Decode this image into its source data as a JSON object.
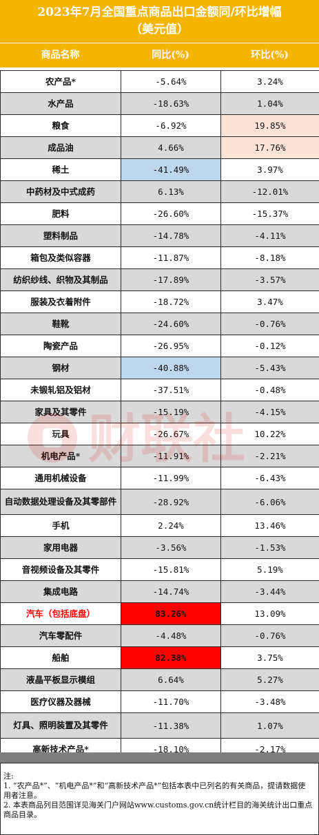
{
  "title": {
    "line1": "2023年7月全国重点商品出口金额同/环比增幅",
    "line2": "（美元值）"
  },
  "headers": {
    "name": "商品名称",
    "yoy": "同比(%)",
    "mom": "环比(%)"
  },
  "rows": [
    {
      "name": "农产品*",
      "yoy": "-5.64%",
      "mom": "3.24%"
    },
    {
      "name": "水产品",
      "yoy": "-18.63%",
      "mom": "1.04%"
    },
    {
      "name": "粮食",
      "yoy": "-6.92%",
      "mom": "19.85%"
    },
    {
      "name": "成品油",
      "yoy": "4.66%",
      "mom": "17.76%"
    },
    {
      "name": "稀土",
      "yoy": "-41.49%",
      "mom": "3.97%"
    },
    {
      "name": "中药材及中式成药",
      "yoy": "6.13%",
      "mom": "-12.01%"
    },
    {
      "name": "肥料",
      "yoy": "-26.60%",
      "mom": "-15.37%"
    },
    {
      "name": "塑料制品",
      "yoy": "-14.78%",
      "mom": "-4.11%"
    },
    {
      "name": "箱包及类似容器",
      "yoy": "-11.87%",
      "mom": "-8.18%"
    },
    {
      "name": "纺织纱线、织物及其制品",
      "yoy": "-17.89%",
      "mom": "-3.57%"
    },
    {
      "name": "服装及衣着附件",
      "yoy": "-18.72%",
      "mom": "3.47%"
    },
    {
      "name": "鞋靴",
      "yoy": "-24.60%",
      "mom": "-0.76%"
    },
    {
      "name": "陶瓷产品",
      "yoy": "-26.95%",
      "mom": "-0.12%"
    },
    {
      "name": "钢材",
      "yoy": "-40.88%",
      "mom": "-5.43%"
    },
    {
      "name": "未锻轧铝及铝材",
      "yoy": "-37.51%",
      "mom": "-0.48%"
    },
    {
      "name": "家具及其零件",
      "yoy": "-15.19%",
      "mom": "-4.15%"
    },
    {
      "name": "玩具",
      "yoy": "-26.67%",
      "mom": "10.22%"
    },
    {
      "name": "机电产品*",
      "yoy": "-11.91%",
      "mom": "-2.21%"
    },
    {
      "name": "通用机械设备",
      "yoy": "-11.99%",
      "mom": "-6.43%"
    },
    {
      "name": "自动数据处理设备及其零部件",
      "yoy": "-28.92%",
      "mom": "-6.06%"
    },
    {
      "name": "手机",
      "yoy": "2.24%",
      "mom": "13.46%"
    },
    {
      "name": "家用电器",
      "yoy": "-3.56%",
      "mom": "-1.53%"
    },
    {
      "name": "音视频设备及其零件",
      "yoy": "-15.81%",
      "mom": "5.19%"
    },
    {
      "name": "集成电路",
      "yoy": "-14.74%",
      "mom": "-3.44%"
    },
    {
      "name": "汽车（包括底盘）",
      "yoy": "83.26%",
      "mom": "13.09%"
    },
    {
      "name": "汽车零配件",
      "yoy": "-4.48%",
      "mom": "-0.76%"
    },
    {
      "name": "船舶",
      "yoy": "82.38%",
      "mom": "3.75%"
    },
    {
      "name": "液晶平板显示模组",
      "yoy": "6.64%",
      "mom": "5.27%"
    },
    {
      "name": "医疗仪器及器械",
      "yoy": "-11.70%",
      "mom": "-3.48%"
    },
    {
      "name": "灯具、照明装置及其零件",
      "yoy": "-11.38%",
      "mom": "1.07%"
    },
    {
      "name": "高新技术产品*",
      "yoy": "-18.10%",
      "mom": "-2.17%"
    }
  ],
  "highlights": {
    "blue": "#bdd7ee",
    "peach": "#fbe3d6",
    "red": "#ff0000",
    "header_yellow": "#f5b400"
  },
  "notes": {
    "label": "注:",
    "line1": "1. “农产品*”、“机电产品*”和“高新技术产品*”包括本表中已列名的有关商品，提请数据使用者注意。",
    "line2": "2. 本表商品列目范围详见海关门户网站www.customs.gov.cn统计栏目的海关统计出口重点商品目录。"
  },
  "watermark": {
    "text": "财联社"
  }
}
